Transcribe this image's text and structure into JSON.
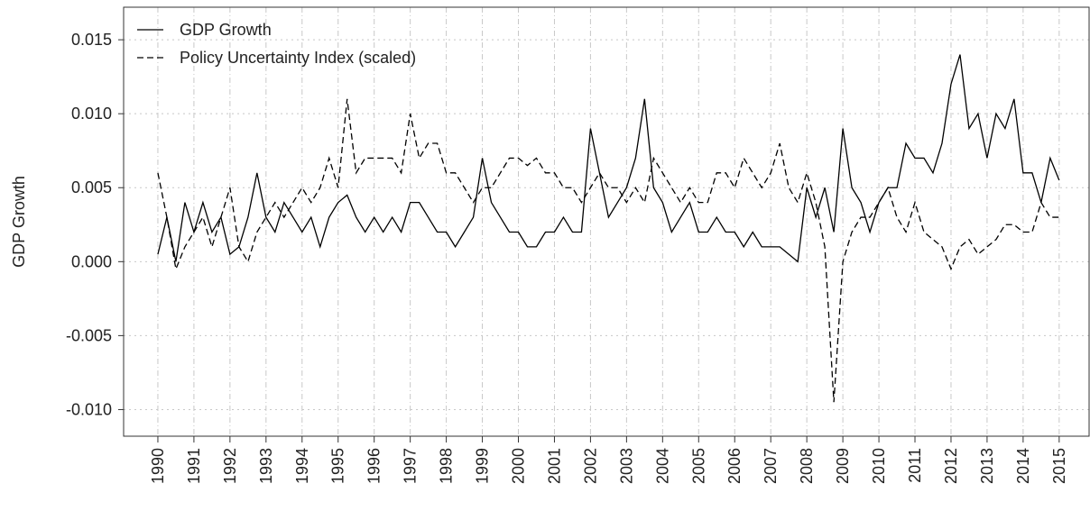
{
  "chart_data": {
    "type": "line",
    "y_label": "GDP Growth",
    "x": [
      1990,
      1990.25,
      1990.5,
      1990.75,
      1991,
      1991.25,
      1991.5,
      1991.75,
      1992,
      1992.25,
      1992.5,
      1992.75,
      1993,
      1993.25,
      1993.5,
      1993.75,
      1994,
      1994.25,
      1994.5,
      1994.75,
      1995,
      1995.25,
      1995.5,
      1995.75,
      1996,
      1996.25,
      1996.5,
      1996.75,
      1997,
      1997.25,
      1997.5,
      1997.75,
      1998,
      1998.25,
      1998.5,
      1998.75,
      1999,
      1999.25,
      1999.5,
      1999.75,
      2000,
      2000.25,
      2000.5,
      2000.75,
      2001,
      2001.25,
      2001.5,
      2001.75,
      2002,
      2002.25,
      2002.5,
      2002.75,
      2003,
      2003.25,
      2003.5,
      2003.75,
      2004,
      2004.25,
      2004.5,
      2004.75,
      2005,
      2005.25,
      2005.5,
      2005.75,
      2006,
      2006.25,
      2006.5,
      2006.75,
      2007,
      2007.25,
      2007.5,
      2007.75,
      2008,
      2008.25,
      2008.5,
      2008.75,
      2009,
      2009.25,
      2009.5,
      2009.75,
      2010,
      2010.25,
      2010.5,
      2010.75,
      2011,
      2011.25,
      2011.5,
      2011.75,
      2012,
      2012.25,
      2012.5,
      2012.75,
      2013,
      2013.25,
      2013.5,
      2013.75,
      2014,
      2014.25,
      2014.5,
      2014.75,
      2015
    ],
    "series": [
      {
        "name": "GDP Growth",
        "color": "#000000",
        "linestyle": "solid",
        "values": [
          0.0005,
          0.003,
          0.0,
          0.004,
          0.002,
          0.004,
          0.002,
          0.003,
          0.0005,
          0.001,
          0.003,
          0.006,
          0.003,
          0.002,
          0.004,
          0.003,
          0.002,
          0.003,
          0.001,
          0.003,
          0.004,
          0.0045,
          0.003,
          0.002,
          0.003,
          0.002,
          0.003,
          0.002,
          0.004,
          0.004,
          0.003,
          0.002,
          0.002,
          0.001,
          0.002,
          0.003,
          0.007,
          0.004,
          0.003,
          0.002,
          0.002,
          0.001,
          0.001,
          0.002,
          0.002,
          0.003,
          0.002,
          0.002,
          0.009,
          0.006,
          0.003,
          0.004,
          0.005,
          0.007,
          0.011,
          0.005,
          0.004,
          0.002,
          0.003,
          0.004,
          0.002,
          0.002,
          0.003,
          0.002,
          0.002,
          0.001,
          0.002,
          0.001,
          0.001,
          0.001,
          0.0005,
          0.0,
          0.005,
          0.003,
          0.005,
          0.002,
          0.009,
          0.005,
          0.004,
          0.002,
          0.004,
          0.005,
          0.005,
          0.008,
          0.007,
          0.007,
          0.006,
          0.008,
          0.012,
          0.014,
          0.009,
          0.01,
          0.007,
          0.01,
          0.009,
          0.011,
          0.006,
          0.006,
          0.004,
          0.007,
          0.0055
        ]
      },
      {
        "name": "Policy Uncertainty Index (scaled)",
        "color": "#000000",
        "linestyle": "dashed",
        "values": [
          0.006,
          0.003,
          -0.0005,
          0.001,
          0.002,
          0.003,
          0.001,
          0.003,
          0.005,
          0.001,
          0.0,
          0.002,
          0.003,
          0.004,
          0.003,
          0.004,
          0.005,
          0.004,
          0.005,
          0.007,
          0.005,
          0.011,
          0.006,
          0.007,
          0.007,
          0.007,
          0.007,
          0.006,
          0.01,
          0.007,
          0.008,
          0.008,
          0.006,
          0.006,
          0.005,
          0.004,
          0.005,
          0.005,
          0.006,
          0.007,
          0.007,
          0.0065,
          0.007,
          0.006,
          0.006,
          0.005,
          0.005,
          0.004,
          0.005,
          0.006,
          0.005,
          0.005,
          0.004,
          0.005,
          0.004,
          0.007,
          0.006,
          0.005,
          0.004,
          0.005,
          0.004,
          0.004,
          0.006,
          0.006,
          0.005,
          0.007,
          0.006,
          0.005,
          0.006,
          0.008,
          0.005,
          0.004,
          0.006,
          0.004,
          0.001,
          -0.0095,
          0.0,
          0.002,
          0.003,
          0.003,
          0.004,
          0.005,
          0.003,
          0.002,
          0.004,
          0.002,
          0.0015,
          0.001,
          -0.0005,
          0.001,
          0.0015,
          0.0005,
          0.001,
          0.0015,
          0.0025,
          0.0025,
          0.002,
          0.002,
          0.004,
          0.003,
          0.003
        ]
      }
    ],
    "xlim": [
      1989.05,
      2015.83
    ],
    "ylim": [
      -0.0118,
      0.0172
    ],
    "xticks": [
      1990,
      1991,
      1992,
      1993,
      1994,
      1995,
      1996,
      1997,
      1998,
      1999,
      2000,
      2001,
      2002,
      2003,
      2004,
      2005,
      2006,
      2007,
      2008,
      2009,
      2010,
      2011,
      2012,
      2013,
      2014,
      2015
    ],
    "yticks": [
      {
        "value": 0.015,
        "label": "0.015"
      },
      {
        "value": 0.01,
        "label": "0.010"
      },
      {
        "value": 0.005,
        "label": "0.005"
      },
      {
        "value": 0.0,
        "label": "0.000"
      },
      {
        "value": -0.005,
        "label": "-0.005"
      },
      {
        "value": -0.01,
        "label": "-0.010"
      }
    ],
    "grid": true,
    "legend": "top-left"
  }
}
